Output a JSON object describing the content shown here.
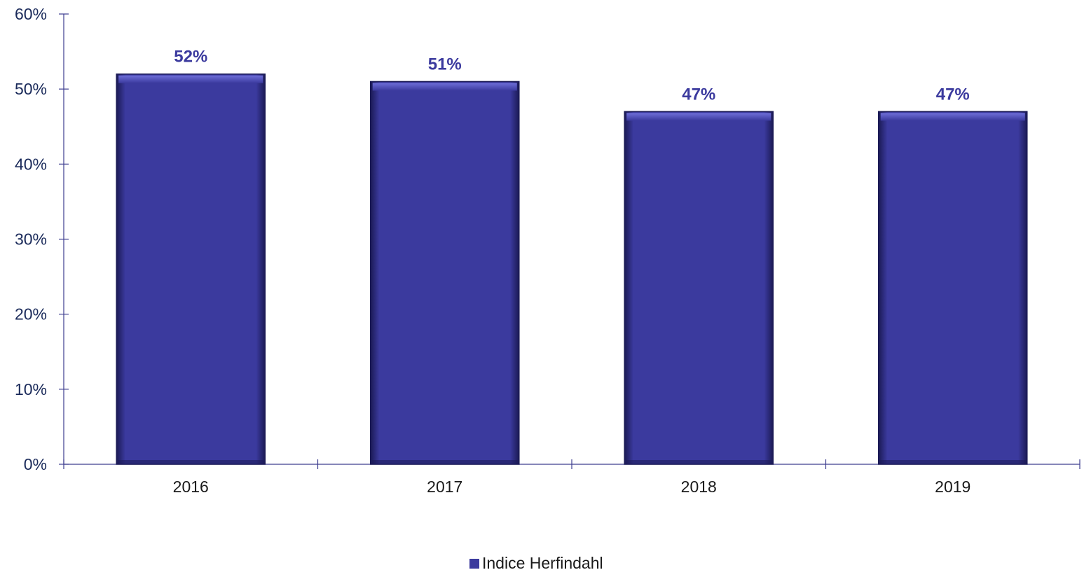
{
  "chart_data": {
    "type": "bar",
    "categories": [
      "2016",
      "2017",
      "2018",
      "2019"
    ],
    "series": [
      {
        "name": "Indice Herfindahl",
        "values": [
          52,
          51,
          47,
          47
        ],
        "labels": [
          "52%",
          "51%",
          "47%",
          "47%"
        ]
      }
    ],
    "ylim": [
      0,
      60
    ],
    "yticks": [
      "0%",
      "10%",
      "20%",
      "30%",
      "40%",
      "50%",
      "60%"
    ],
    "title": "",
    "xlabel": "",
    "ylabel": "",
    "grid": false,
    "legend": "bottom-center",
    "colors": {
      "bar": "#3b3a9e",
      "bar_dark": "#1b1a55",
      "bar_light": "#6e6ed8",
      "label": "#3b3a9e",
      "axis": "#3d3d8f"
    }
  }
}
